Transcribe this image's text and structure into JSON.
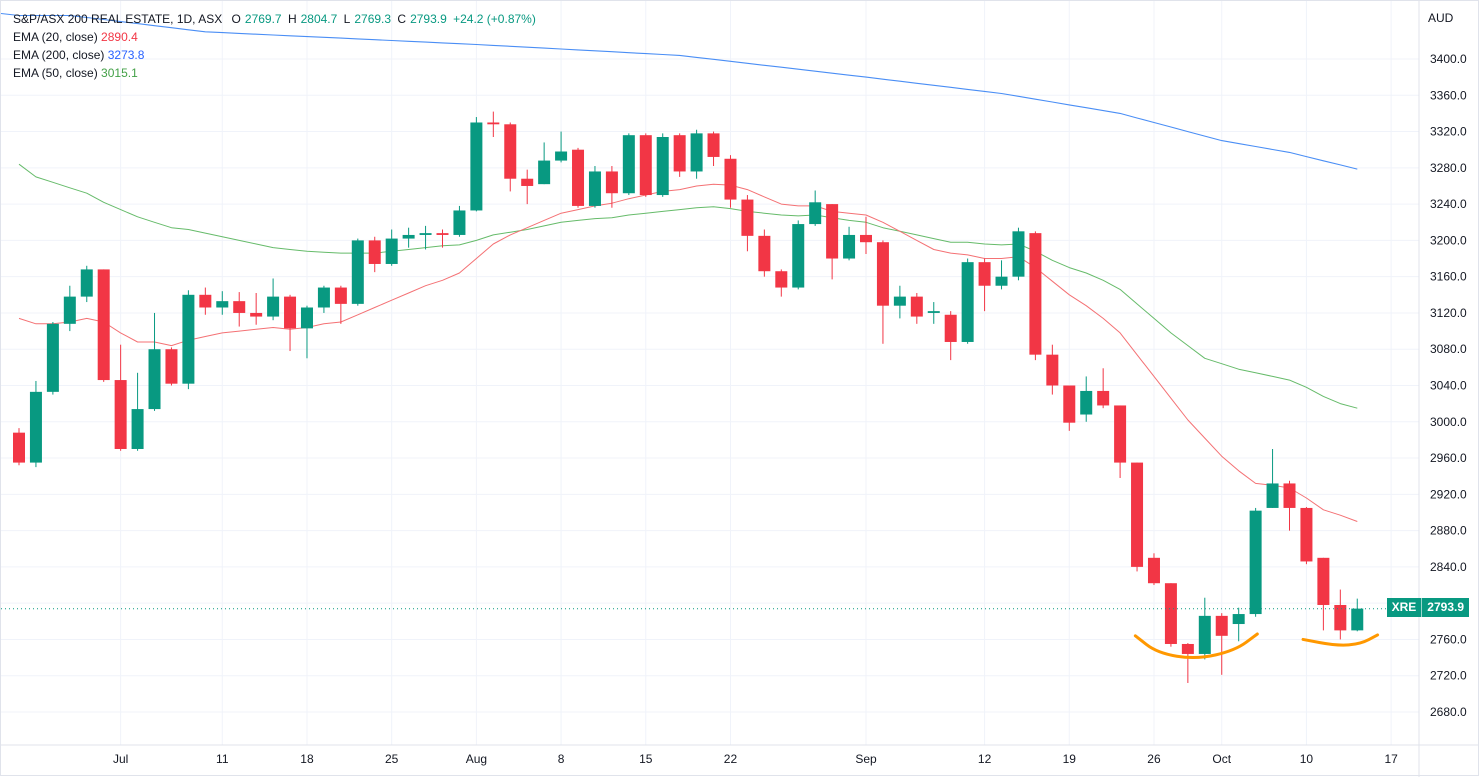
{
  "header": {
    "symbol_line": "S&P/ASX 200 REAL ESTATE, 1D, ASX",
    "ohlc": [
      {
        "key": "O",
        "value": "2769.7"
      },
      {
        "key": "H",
        "value": "2804.7"
      },
      {
        "key": "L",
        "value": "2769.3"
      },
      {
        "key": "C",
        "value": "2793.9"
      }
    ],
    "change": "+24.2 (+0.87%)",
    "indicators": [
      {
        "label": "EMA (20, close)",
        "value": "2890.4",
        "cls": "ema20"
      },
      {
        "label": "EMA (200, close)",
        "value": "3273.8",
        "cls": "ema200"
      },
      {
        "label": "EMA (50, close)",
        "value": "3015.1",
        "cls": "ema50"
      }
    ],
    "currency": "AUD"
  },
  "last_price": {
    "symbol": "XRE",
    "value": "2793.9",
    "raw": 2793.9
  },
  "colors": {
    "up": "#089981",
    "down": "#f23645",
    "ema20": "#f23645",
    "ema50": "#43a047",
    "ema200": "#2962ff",
    "annotation": "#ff9800"
  },
  "chart_data": {
    "type": "candlestick",
    "title": "S&P/ASX 200 REAL ESTATE, 1D, ASX",
    "ylim": [
      2650,
      3440
    ],
    "y_ticks": [
      2680,
      2720,
      2760,
      2800,
      2840,
      2880,
      2920,
      2960,
      3000,
      3040,
      3080,
      3120,
      3160,
      3200,
      3240,
      3280,
      3320,
      3360,
      3400
    ],
    "y_tick_labels": [
      "2680.0",
      "2720.0",
      "2760.0",
      "2800.0",
      "2840.0",
      "2880.0",
      "2920.0",
      "2960.0",
      "3000.0",
      "3040.0",
      "3080.0",
      "3120.0",
      "3160.0",
      "3200.0",
      "3240.0",
      "3280.0",
      "3320.0",
      "3360.0",
      "3400.0"
    ],
    "x_ticks": [
      {
        "i": 6,
        "label": "Jul"
      },
      {
        "i": 12,
        "label": "11"
      },
      {
        "i": 17,
        "label": "18"
      },
      {
        "i": 22,
        "label": "25"
      },
      {
        "i": 27,
        "label": "Aug"
      },
      {
        "i": 32,
        "label": "8"
      },
      {
        "i": 37,
        "label": "15"
      },
      {
        "i": 42,
        "label": "22"
      },
      {
        "i": 50,
        "label": "Sep"
      },
      {
        "i": 57,
        "label": "12"
      },
      {
        "i": 62,
        "label": "19"
      },
      {
        "i": 67,
        "label": "26"
      },
      {
        "i": 71,
        "label": "Oct"
      },
      {
        "i": 76,
        "label": "10"
      },
      {
        "i": 81,
        "label": "17"
      }
    ],
    "candles": [
      [
        2988,
        2955,
        2993,
        2952
      ],
      [
        2955,
        3033,
        3045,
        2950
      ],
      [
        3033,
        3108,
        3110,
        3030
      ],
      [
        3108,
        3138,
        3150,
        3100
      ],
      [
        3138,
        3168,
        3172,
        3132
      ],
      [
        3168,
        3046,
        3168,
        3044
      ],
      [
        3046,
        2970,
        3085,
        2968
      ],
      [
        2970,
        3014,
        3054,
        2968
      ],
      [
        3014,
        3080,
        3120,
        3012
      ],
      [
        3080,
        3042,
        3082,
        3040
      ],
      [
        3042,
        3140,
        3145,
        3036
      ],
      [
        3140,
        3126,
        3148,
        3118
      ],
      [
        3126,
        3133,
        3144,
        3118
      ],
      [
        3133,
        3120,
        3143,
        3105
      ],
      [
        3120,
        3116,
        3142,
        3107
      ],
      [
        3116,
        3138,
        3158,
        3112
      ],
      [
        3138,
        3103,
        3140,
        3078
      ],
      [
        3103,
        3126,
        3128,
        3070
      ],
      [
        3126,
        3148,
        3150,
        3120
      ],
      [
        3148,
        3130,
        3150,
        3108
      ],
      [
        3130,
        3200,
        3202,
        3128
      ],
      [
        3200,
        3174,
        3204,
        3165
      ],
      [
        3174,
        3202,
        3212,
        3172
      ],
      [
        3202,
        3206,
        3214,
        3192
      ],
      [
        3206,
        3208,
        3216,
        3190
      ],
      [
        3208,
        3206,
        3212,
        3192
      ],
      [
        3206,
        3233,
        3238,
        3204
      ],
      [
        3233,
        3330,
        3336,
        3232
      ],
      [
        3330,
        3328,
        3342,
        3314
      ],
      [
        3328,
        3268,
        3330,
        3254
      ],
      [
        3268,
        3260,
        3278,
        3240
      ],
      [
        3262,
        3288,
        3308,
        3262
      ],
      [
        3288,
        3298,
        3320,
        3286
      ],
      [
        3300,
        3238,
        3302,
        3236
      ],
      [
        3238,
        3276,
        3282,
        3236
      ],
      [
        3276,
        3252,
        3282,
        3236
      ],
      [
        3252,
        3316,
        3318,
        3250
      ],
      [
        3316,
        3250,
        3318,
        3248
      ],
      [
        3250,
        3314,
        3318,
        3248
      ],
      [
        3316,
        3276,
        3318,
        3270
      ],
      [
        3276,
        3318,
        3322,
        3268
      ],
      [
        3318,
        3292,
        3320,
        3282
      ],
      [
        3290,
        3245,
        3294,
        3236
      ],
      [
        3245,
        3205,
        3250,
        3188
      ],
      [
        3205,
        3166,
        3212,
        3160
      ],
      [
        3166,
        3148,
        3168,
        3138
      ],
      [
        3148,
        3218,
        3222,
        3146
      ],
      [
        3218,
        3242,
        3255,
        3216
      ],
      [
        3240,
        3180,
        3240,
        3157
      ],
      [
        3180,
        3206,
        3215,
        3178
      ],
      [
        3206,
        3198,
        3226,
        3185
      ],
      [
        3198,
        3128,
        3200,
        3086
      ],
      [
        3128,
        3138,
        3150,
        3114
      ],
      [
        3138,
        3116,
        3142,
        3108
      ],
      [
        3120,
        3122,
        3132,
        3108
      ],
      [
        3118,
        3088,
        3122,
        3068
      ],
      [
        3088,
        3176,
        3180,
        3086
      ],
      [
        3176,
        3150,
        3180,
        3122
      ],
      [
        3150,
        3160,
        3178,
        3146
      ],
      [
        3160,
        3210,
        3214,
        3156
      ],
      [
        3208,
        3074,
        3210,
        3068
      ],
      [
        3074,
        3040,
        3085,
        3030
      ],
      [
        3040,
        2999,
        3040,
        2990
      ],
      [
        3008,
        3034,
        3050,
        3000
      ],
      [
        3034,
        3018,
        3059,
        3015
      ],
      [
        3018,
        2955,
        3018,
        2938
      ],
      [
        2955,
        2840,
        2955,
        2835
      ],
      [
        2850,
        2822,
        2855,
        2820
      ],
      [
        2822,
        2755,
        2822,
        2752
      ],
      [
        2755,
        2744,
        2756,
        2712
      ],
      [
        2744,
        2786,
        2806,
        2738
      ],
      [
        2786,
        2764,
        2789,
        2721
      ],
      [
        2777,
        2788,
        2795,
        2758
      ],
      [
        2788,
        2902,
        2905,
        2785
      ],
      [
        2905,
        2932,
        2970,
        2905
      ],
      [
        2932,
        2905,
        2935,
        2880
      ],
      [
        2905,
        2846,
        2906,
        2843
      ],
      [
        2850,
        2798,
        2850,
        2770
      ],
      [
        2798,
        2770,
        2815,
        2760
      ],
      [
        2770,
        2794,
        2805,
        2769
      ]
    ],
    "ema20": [
      3114,
      3108,
      3108,
      3110,
      3114,
      3110,
      3098,
      3088,
      3088,
      3084,
      3090,
      3094,
      3098,
      3100,
      3102,
      3104,
      3102,
      3104,
      3108,
      3110,
      3118,
      3126,
      3134,
      3142,
      3150,
      3156,
      3164,
      3180,
      3196,
      3206,
      3214,
      3222,
      3230,
      3234,
      3238,
      3241,
      3246,
      3250,
      3254,
      3256,
      3260,
      3262,
      3261,
      3256,
      3248,
      3240,
      3238,
      3238,
      3232,
      3230,
      3228,
      3220,
      3210,
      3200,
      3190,
      3186,
      3184,
      3180,
      3180,
      3182,
      3170,
      3155,
      3140,
      3128,
      3114,
      3098,
      3074,
      3050,
      3026,
      3002,
      2982,
      2962,
      2946,
      2932,
      2930,
      2927,
      2916,
      2903,
      2897,
      2890
    ],
    "ema50": [
      3284,
      3270,
      3264,
      3258,
      3252,
      3242,
      3234,
      3226,
      3220,
      3214,
      3212,
      3208,
      3204,
      3200,
      3196,
      3192,
      3190,
      3188,
      3187,
      3186,
      3186,
      3186,
      3188,
      3190,
      3192,
      3194,
      3195,
      3200,
      3206,
      3209,
      3212,
      3216,
      3220,
      3222,
      3224,
      3225,
      3228,
      3230,
      3232,
      3234,
      3236,
      3237,
      3235,
      3232,
      3230,
      3228,
      3227,
      3228,
      3225,
      3222,
      3220,
      3214,
      3210,
      3206,
      3202,
      3198,
      3198,
      3196,
      3195,
      3196,
      3188,
      3178,
      3170,
      3164,
      3156,
      3146,
      3130,
      3114,
      3098,
      3084,
      3070,
      3064,
      3058,
      3054,
      3050,
      3046,
      3038,
      3028,
      3020,
      3015
    ],
    "ema200_points": [
      [
        3,
        3448
      ],
      [
        11,
        3430
      ],
      [
        27,
        3416
      ],
      [
        39,
        3404
      ],
      [
        50,
        3380
      ],
      [
        58,
        3362
      ],
      [
        65,
        3340
      ],
      [
        71,
        3310
      ],
      [
        75,
        3297
      ],
      [
        80,
        3274
      ]
    ],
    "annotations": [
      {
        "type": "curve",
        "x": [
          65.9,
          67.2,
          69.5,
          71.8,
          73.1
        ],
        "y": [
          2764,
          2745,
          2738,
          2748,
          2766
        ]
      },
      {
        "type": "curve",
        "x": [
          75.8,
          77.8,
          79.2,
          80.2
        ],
        "y": [
          2760,
          2753,
          2755,
          2765
        ]
      }
    ]
  }
}
